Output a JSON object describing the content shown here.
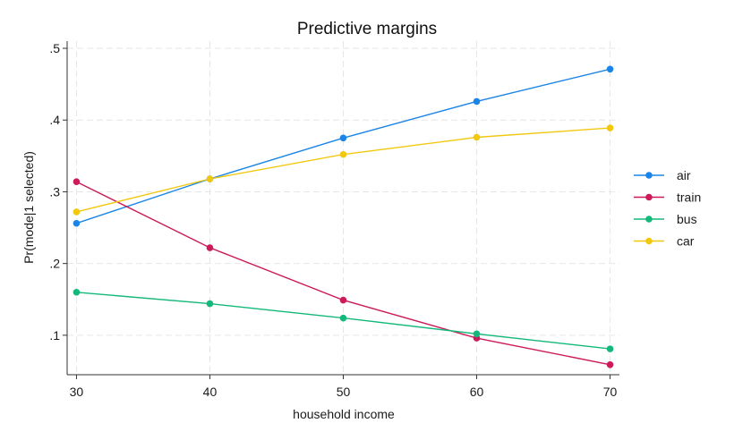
{
  "chart_data": {
    "type": "line",
    "title": "Predictive margins",
    "xlabel": "household income",
    "ylabel": "Pr(mode|1 selected)",
    "x": [
      30,
      40,
      50,
      60,
      70
    ],
    "x_tick_labels": [
      "30",
      "40",
      "50",
      "60",
      "70"
    ],
    "y_ticks": [
      0.1,
      0.2,
      0.3,
      0.4,
      0.5
    ],
    "y_tick_labels": [
      ".1",
      ".2",
      ".3",
      ".4",
      ".5"
    ],
    "xlim": [
      29.3,
      70.7
    ],
    "ylim": [
      0.045,
      0.51
    ],
    "grid": true,
    "legend_position": "right",
    "series": [
      {
        "name": "air",
        "color": "#1a85e6",
        "values": [
          0.256,
          0.318,
          0.375,
          0.426,
          0.471
        ]
      },
      {
        "name": "train",
        "color": "#cc1a5a",
        "values": [
          0.314,
          0.222,
          0.149,
          0.096,
          0.059
        ]
      },
      {
        "name": "bus",
        "color": "#14b87a",
        "values": [
          0.16,
          0.144,
          0.124,
          0.102,
          0.081
        ]
      },
      {
        "name": "car",
        "color": "#f2c80f",
        "values": [
          0.272,
          0.318,
          0.352,
          0.376,
          0.389
        ]
      }
    ]
  }
}
